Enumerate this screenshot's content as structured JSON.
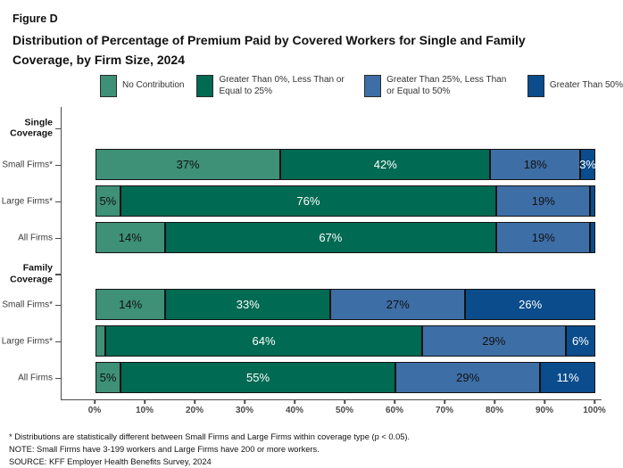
{
  "header": {
    "figure_label": "Figure D",
    "title": "Distribution of Percentage of Premium Paid by Covered Workers for Single and Family Coverage, by Firm Size, 2024"
  },
  "footnotes": {
    "asterisk": "* Distributions are statistically different between Small Firms and Large Firms within coverage type (p < 0.05).",
    "note": "NOTE: Small Firms have 3-199 workers and Large Firms have 200 or more workers.",
    "source": "SOURCE: KFF Employer Health Benefits Survey, 2024"
  },
  "chart_data": {
    "type": "bar",
    "subtype": "horizontal-stacked",
    "title": "Distribution of Percentage of Premium Paid by Covered Workers for Single and Family Coverage, by Firm Size, 2024",
    "legend_position": "top",
    "series": [
      {
        "name": "No Contribution",
        "color": "#3E9077",
        "text_color": "#111111"
      },
      {
        "name": "Greater Than 0%, Less Than or Equal to 25%",
        "color": "#006A52",
        "text_color": "#ffffff"
      },
      {
        "name": "Greater Than 25%, Less Than or Equal to 50%",
        "color": "#3E6EA6",
        "text_color": "#111111"
      },
      {
        "name": "Greater Than 50%",
        "color": "#0A4C8C",
        "text_color": "#ffffff"
      }
    ],
    "groups": [
      {
        "label": "Single Coverage",
        "rows": [
          {
            "category": "Small Firms*",
            "values": [
              37,
              42,
              18,
              3
            ],
            "labels": [
              "37%",
              "42%",
              "18%",
              "3%"
            ]
          },
          {
            "category": "Large Firms*",
            "values": [
              5,
              76,
              19,
              1
            ],
            "labels": [
              "5%",
              "76%",
              "19%",
              ""
            ]
          },
          {
            "category": "All Firms",
            "values": [
              14,
              67,
              19,
              1
            ],
            "labels": [
              "14%",
              "67%",
              "19%",
              ""
            ]
          }
        ]
      },
      {
        "label": "Family Coverage",
        "rows": [
          {
            "category": "Small Firms*",
            "values": [
              14,
              33,
              27,
              26
            ],
            "labels": [
              "14%",
              "33%",
              "27%",
              "26%"
            ]
          },
          {
            "category": "Large Firms*",
            "values": [
              2,
              64,
              29,
              6
            ],
            "labels": [
              "",
              "64%",
              "29%",
              "6%"
            ]
          },
          {
            "category": "All Firms",
            "values": [
              5,
              55,
              29,
              11
            ],
            "labels": [
              "5%",
              "55%",
              "29%",
              "11%"
            ]
          }
        ]
      }
    ],
    "x_axis": {
      "range": [
        0,
        100
      ],
      "ticks": [
        "0%",
        "10%",
        "20%",
        "30%",
        "40%",
        "50%",
        "60%",
        "70%",
        "80%",
        "90%",
        "100%"
      ]
    }
  }
}
